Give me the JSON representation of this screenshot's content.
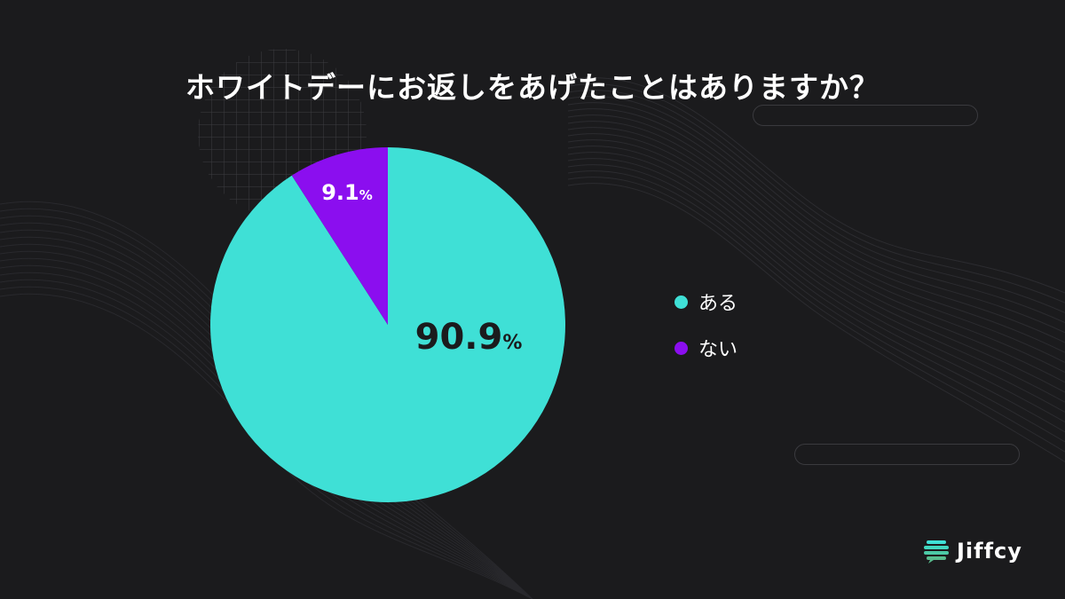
{
  "title": "ホワイトデーにお返しをあげたことはありますか？",
  "chart_data": {
    "type": "pie",
    "categories": [
      "ある",
      "ない"
    ],
    "values": [
      90.9,
      9.1
    ],
    "colors": [
      "#3fe0d6",
      "#8b0eef"
    ],
    "labels": [
      {
        "value": "90.9",
        "unit": "%"
      },
      {
        "value": "9.1",
        "unit": "%"
      }
    ],
    "legend_position": "right"
  },
  "legend": {
    "items": [
      {
        "label": "ある",
        "color": "#3fe0d6"
      },
      {
        "label": "ない",
        "color": "#8b0eef"
      }
    ]
  },
  "brand": {
    "name": "Jiffcy",
    "accent": "#3fe0d6"
  }
}
